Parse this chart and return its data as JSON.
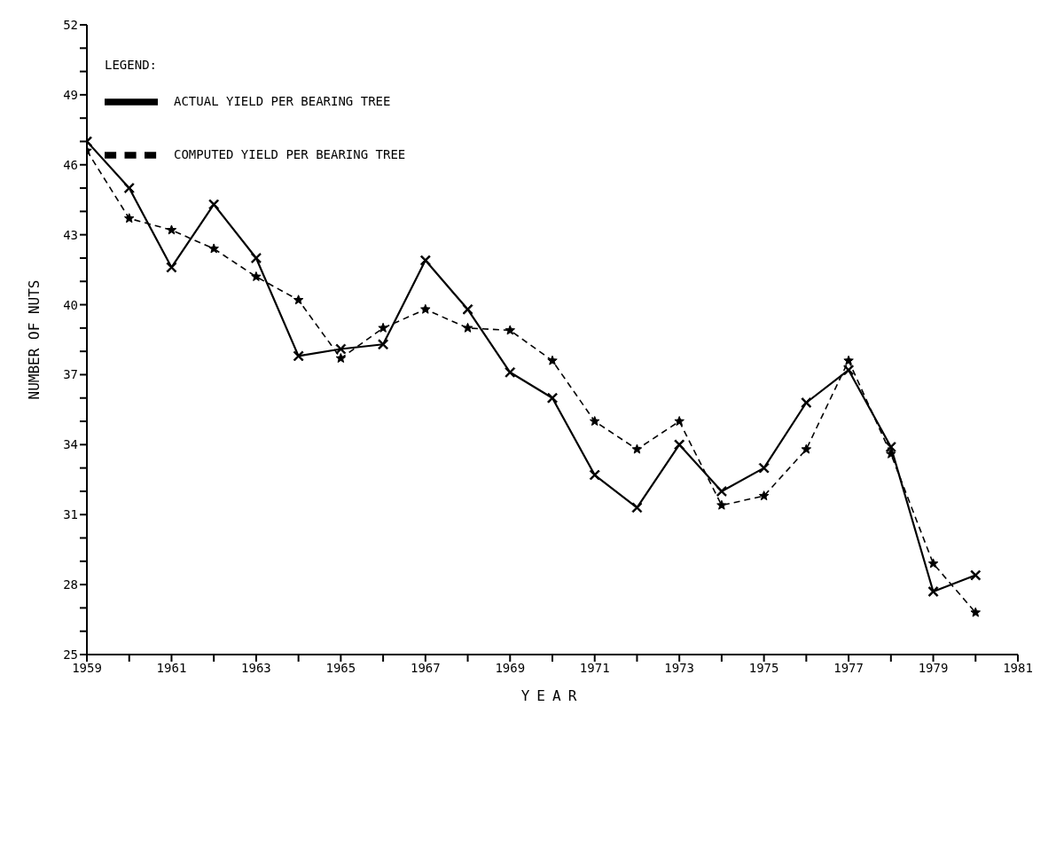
{
  "chart_data": {
    "type": "line",
    "xlabel": "YEAR",
    "ylabel": "NUMBER OF NUTS",
    "legend_title": "LEGEND:",
    "legend": "top left",
    "grid": false,
    "x": [
      1959,
      1960,
      1961,
      1962,
      1963,
      1964,
      1965,
      1966,
      1967,
      1968,
      1969,
      1970,
      1971,
      1972,
      1973,
      1974,
      1975,
      1976,
      1977,
      1978,
      1979,
      1980
    ],
    "series": [
      {
        "name": "ACTUAL YIELD PER BEARING TREE",
        "color": "#000000",
        "marker": "cross",
        "line_style": "solid",
        "values": [
          47.0,
          45.0,
          41.6,
          44.3,
          42.0,
          37.8,
          38.1,
          38.3,
          41.9,
          39.8,
          37.1,
          36.0,
          32.7,
          31.3,
          34.0,
          32.0,
          33.0,
          35.8,
          37.2,
          33.9,
          27.7,
          28.4
        ]
      },
      {
        "name": "COMPUTED YIELD PER BEARING TREE",
        "color": "#000000",
        "marker": "star",
        "line_style": "dashed",
        "values": [
          46.6,
          43.7,
          43.2,
          42.4,
          41.2,
          40.2,
          37.7,
          39.0,
          39.8,
          39.0,
          38.9,
          37.6,
          35.0,
          33.8,
          35.0,
          31.4,
          31.8,
          33.8,
          37.6,
          33.6,
          28.9,
          26.8
        ]
      }
    ],
    "xlim": [
      1959,
      1981
    ],
    "xticks": [
      1959,
      {
        "value": 1960,
        "label": null
      },
      1961,
      {
        "value": 1962,
        "label": null
      },
      1963,
      {
        "value": 1964,
        "label": null
      },
      1965,
      {
        "value": 1966,
        "label": null
      },
      1967,
      {
        "value": 1968,
        "label": null
      },
      1969,
      {
        "value": 1970,
        "label": null
      },
      1971,
      {
        "value": 1972,
        "label": null
      },
      1973,
      {
        "value": 1974,
        "label": null
      },
      1975,
      {
        "value": 1976,
        "label": null
      },
      1977,
      {
        "value": 1978,
        "label": null
      },
      1979,
      {
        "value": 1980,
        "label": null
      },
      1981
    ],
    "ylim": [
      25,
      52
    ],
    "yticks": [
      25,
      {
        "value": 26,
        "label": null
      },
      {
        "value": 27,
        "label": null
      },
      28,
      {
        "value": 29,
        "label": null
      },
      {
        "value": 30,
        "label": null
      },
      31,
      {
        "value": 32,
        "label": null
      },
      {
        "value": 33,
        "label": null
      },
      34,
      {
        "value": 35,
        "label": null
      },
      {
        "value": 36,
        "label": null
      },
      37,
      {
        "value": 38,
        "label": null
      },
      {
        "value": 39,
        "label": null
      },
      40,
      {
        "value": 41,
        "label": null
      },
      {
        "value": 42,
        "label": null
      },
      43,
      {
        "value": 44,
        "label": null
      },
      {
        "value": 45,
        "label": null
      },
      46,
      {
        "value": 47,
        "label": null
      },
      {
        "value": 48,
        "label": null
      },
      49,
      {
        "value": 50,
        "label": null
      },
      {
        "value": 51,
        "label": null
      },
      52
    ]
  }
}
